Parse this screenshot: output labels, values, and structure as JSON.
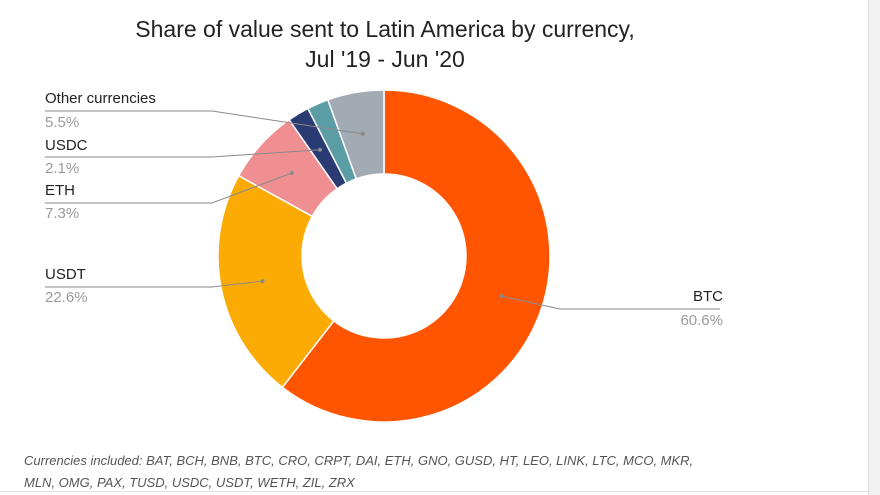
{
  "chart_data": {
    "type": "pie",
    "style": "donut",
    "title_line1": "Share of value sent to Latin America by currency,",
    "title_line2": "Jul '19 - Jun '20",
    "slices": [
      {
        "label": "BTC",
        "value": 60.6,
        "value_label": "60.6%",
        "color": "#ff5500"
      },
      {
        "label": "USDT",
        "value": 22.6,
        "value_label": "22.6%",
        "color": "#fbab04"
      },
      {
        "label": "ETH",
        "value": 7.3,
        "value_label": "7.3%",
        "color": "#ef8f92"
      },
      {
        "label": "",
        "value": 2.1,
        "value_label": "",
        "color": "#2a3a73"
      },
      {
        "label": "",
        "value": 2.1,
        "value_label": "",
        "color": "#5b9da5"
      },
      {
        "label": "Other currencies",
        "value": 5.5,
        "value_label": "5.5%",
        "color": "#a2aab3"
      }
    ],
    "callout_labels": [
      {
        "name": "Other currencies",
        "pct": "5.5%"
      },
      {
        "name": "USDC",
        "pct": "2.1%"
      },
      {
        "name": "ETH",
        "pct": "7.3%"
      },
      {
        "name": "USDT",
        "pct": "22.6%"
      },
      {
        "name": "BTC",
        "pct": "60.6%"
      }
    ],
    "footnote_line1": "Currencies included: BAT, BCH, BNB, BTC, CRO, CRPT, DAI, ETH, GNO, GUSD, HT, LEO, LINK, LTC, MCO, MKR,",
    "footnote_line2": "MLN, OMG, PAX, TUSD, USDC, USDT, WETH, ZIL, ZRX"
  }
}
